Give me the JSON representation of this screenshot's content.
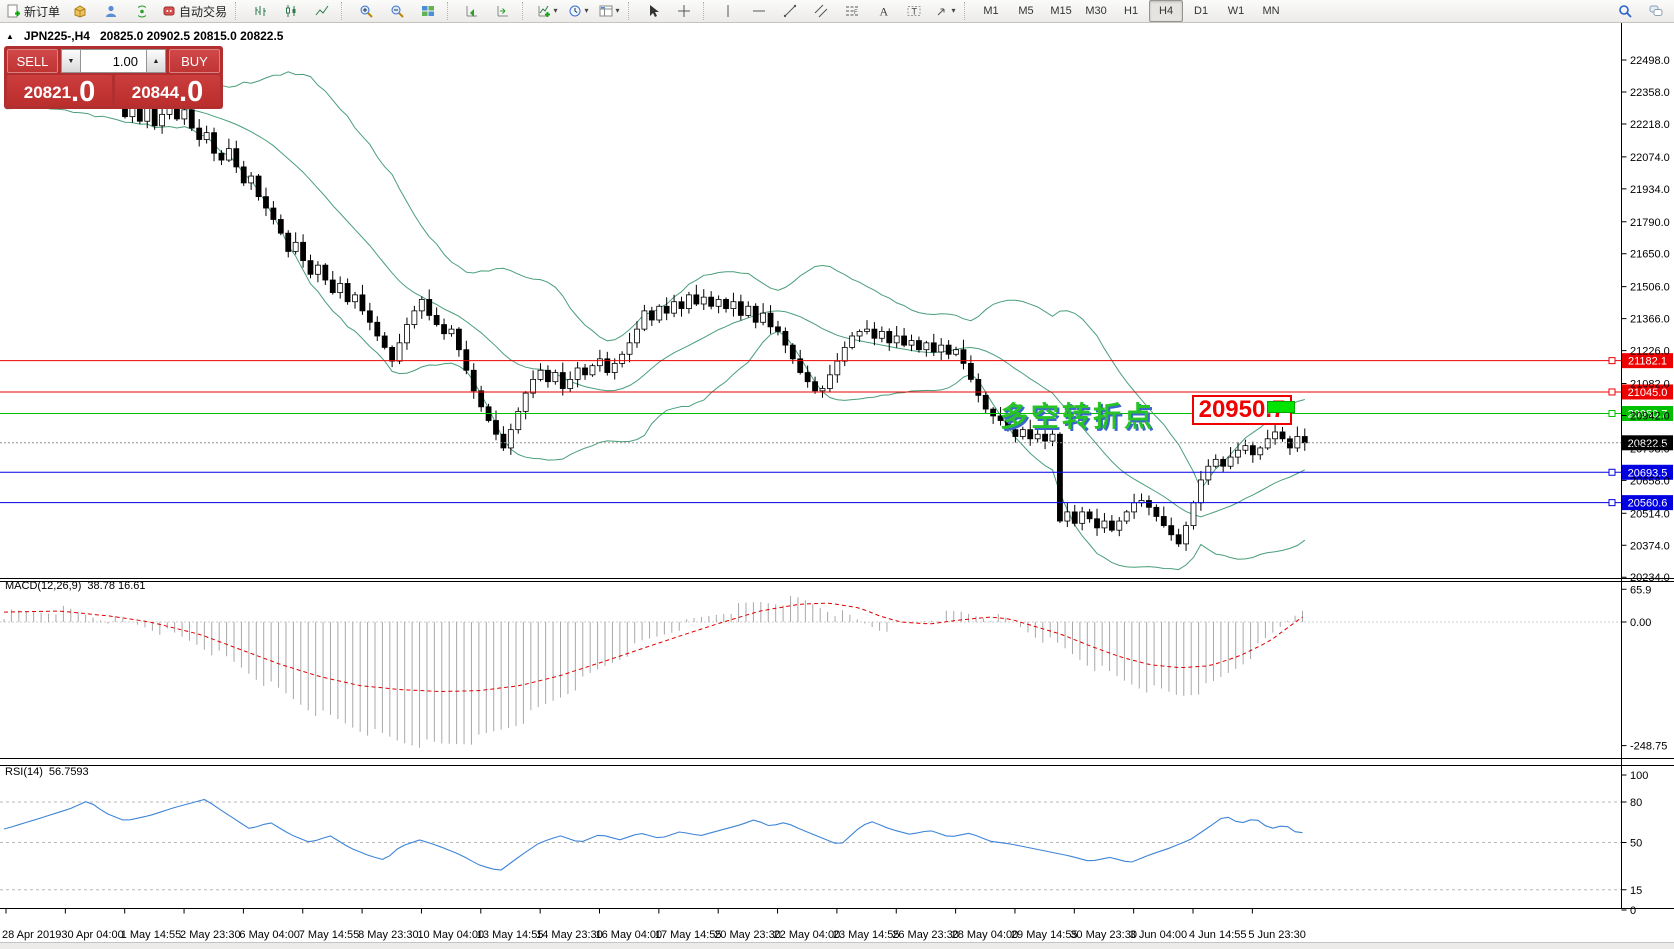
{
  "toolbar": {
    "items": [
      {
        "name": "new-order-button",
        "icon": "new-order-icon",
        "label": "新订单"
      },
      {
        "name": "package-button",
        "icon": "package-icon"
      },
      {
        "name": "support-button",
        "icon": "support-icon"
      },
      {
        "name": "signals-button",
        "icon": "signals-icon"
      },
      {
        "name": "autotrade-button",
        "icon": "autotrade-icon",
        "label": "自动交易"
      },
      {
        "sep": true
      },
      {
        "name": "bar-chart-button",
        "icon": "bar-chart-icon"
      },
      {
        "name": "candlestick-chart-button",
        "icon": "candlestick-icon"
      },
      {
        "name": "line-chart-button",
        "icon": "line-chart-icon"
      },
      {
        "sep": true
      },
      {
        "name": "zoom-in-button",
        "icon": "zoom-in-icon"
      },
      {
        "name": "zoom-out-button",
        "icon": "zoom-out-icon"
      },
      {
        "name": "tile-windows-button",
        "icon": "tile-windows-icon"
      },
      {
        "sep": true
      },
      {
        "name": "chart-shift-button",
        "icon": "chart-shift-icon"
      },
      {
        "name": "auto-scroll-button",
        "icon": "auto-scroll-icon"
      },
      {
        "sep": true
      },
      {
        "name": "indicators-button",
        "icon": "indicators-icon",
        "caret": true
      },
      {
        "name": "periods-button",
        "icon": "clock-icon",
        "caret": true
      },
      {
        "name": "templates-button",
        "icon": "templates-icon",
        "caret": true
      },
      {
        "sep": true
      },
      {
        "name": "cursor-button",
        "icon": "cursor-icon"
      },
      {
        "name": "crosshair-button",
        "icon": "crosshair-icon"
      },
      {
        "sep": true
      },
      {
        "name": "vline-button",
        "icon": "vline-icon"
      },
      {
        "name": "hline-button",
        "icon": "hline-icon"
      },
      {
        "name": "trendline-button",
        "icon": "trendline-icon"
      },
      {
        "name": "channel-button",
        "icon": "channel-icon"
      },
      {
        "name": "fibonacci-button",
        "icon": "fibonacci-icon"
      },
      {
        "name": "text-button",
        "icon": "text-a-icon"
      },
      {
        "name": "text-label-button",
        "icon": "text-label-icon"
      },
      {
        "name": "arrows-button",
        "icon": "arrow-icon",
        "caret": true
      },
      {
        "sep": true
      }
    ],
    "timeframes": [
      "M1",
      "M5",
      "M15",
      "M30",
      "H1",
      "H4",
      "D1",
      "W1",
      "MN"
    ],
    "active_timeframe": "H4",
    "right_items": [
      {
        "name": "search-button",
        "icon": "search-icon"
      },
      {
        "name": "chat-button",
        "icon": "chat-icon"
      }
    ]
  },
  "chart_header": {
    "collapse_icon": "▲",
    "symbol_period": "JPN225-,H4",
    "ohlc": "20825.0 20902.5 20815.0 20822.5"
  },
  "trade_panel": {
    "sell_label": "SELL",
    "buy_label": "BUY",
    "volume": "1.00",
    "sell_price_main": "20821",
    "sell_price_fraction": ".0",
    "buy_price_main": "20844",
    "buy_price_fraction": ".0"
  },
  "annotations": {
    "turning_point_text": "多空转折点",
    "price_callout": "20950.7"
  },
  "chart_data": {
    "type": "candlestick",
    "symbol": "JPN225-",
    "timeframe": "H4",
    "price_axis": {
      "min": 20234.0,
      "max": 22498.0,
      "ticks": [
        "22498.0",
        "22358.0",
        "22218.0",
        "22074.0",
        "21934.0",
        "21790.0",
        "21650.0",
        "21506.0",
        "21366.0",
        "21226.0",
        "21082.0",
        "20942.0",
        "20798.0",
        "20658.0",
        "20514.0",
        "20374.0",
        "20234.0"
      ]
    },
    "time_axis": {
      "labels": [
        "28 Apr 2019",
        "30 Apr 04:00",
        "1 May 14:55",
        "2 May 23:30",
        "6 May 04:00",
        "7 May 14:55",
        "8 May 23:30",
        "10 May 04:00",
        "13 May 14:55",
        "14 May 23:30",
        "16 May 04:00",
        "17 May 14:55",
        "20 May 23:30",
        "22 May 04:00",
        "23 May 14:55",
        "26 May 23:30",
        "28 May 04:00",
        "29 May 14:55",
        "30 May 23:30",
        "3 Jun 04:00",
        "4 Jun 14:55",
        "5 Jun 23:30"
      ]
    },
    "horizontal_lines": [
      {
        "price": 21182.1,
        "label": "21182.1",
        "color": "#ee0000"
      },
      {
        "price": 21045.0,
        "label": "21045.0",
        "color": "#ee0000"
      },
      {
        "price": 20950.7,
        "label": "20950.7",
        "color": "#00c000"
      },
      {
        "price": 20693.5,
        "label": "20693.5",
        "color": "#0000e0"
      },
      {
        "price": 20560.6,
        "label": "20560.6",
        "color": "#0000e0"
      }
    ],
    "current_price": {
      "price": 20822.5,
      "label": "20822.5",
      "color": "#000000"
    },
    "candles": {
      "pre_closes": [
        22480,
        22520,
        22450,
        22500,
        22430,
        22470,
        22400,
        22440,
        22380,
        22420,
        22350,
        22400,
        22330,
        22370,
        22300,
        22350,
        22280,
        22420,
        22380,
        22440,
        22400,
        22360,
        22410,
        22370,
        22330,
        22390,
        22350,
        22310,
        22360,
        22320,
        22280,
        22340,
        22300,
        22260,
        22320,
        22280,
        22240
      ],
      "closes": [
        22250,
        22310,
        22230,
        22290,
        22210,
        22260,
        22320,
        22240,
        22280,
        22200,
        22150,
        22180,
        22090,
        22060,
        22110,
        22030,
        21960,
        21990,
        21900,
        21850,
        21800,
        21740,
        21660,
        21700,
        21620,
        21560,
        21600,
        21535,
        21480,
        21520,
        21440,
        21470,
        21400,
        21350,
        21290,
        21240,
        21180,
        21260,
        21340,
        21400,
        21450,
        21380,
        21340,
        21300,
        21320,
        21230,
        21140,
        21050,
        20980,
        20920,
        20860,
        20800,
        20880,
        20960,
        21040,
        21100,
        21140,
        21090,
        21130,
        21060,
        21100,
        21150,
        21120,
        21160,
        21190,
        21130,
        21170,
        21210,
        21260,
        21320,
        21400,
        21360,
        21420,
        21390,
        21440,
        21410,
        21470,
        21430,
        21460,
        21420,
        21450,
        21410,
        21440,
        21380,
        21420,
        21350,
        21390,
        21330,
        21310,
        21250,
        21190,
        21130,
        21090,
        21050,
        21060,
        21120,
        21180,
        21240,
        21290,
        21310,
        21320,
        21280,
        21310,
        21260,
        21290,
        21250,
        21270,
        21230,
        21260,
        21220,
        21250,
        21210,
        21230,
        21170,
        21100,
        21030,
        20970,
        20940,
        20920,
        20880,
        20850,
        20880,
        20840,
        20860,
        20830,
        20860,
        20480,
        20520,
        20470,
        20520,
        20490,
        20450,
        20480,
        20440,
        20480,
        20520,
        20560,
        20570,
        20540,
        20500,
        20460,
        20420,
        20380,
        20460,
        20560,
        20660,
        20720,
        20750,
        20720,
        20760,
        20790,
        20810,
        20770,
        20800,
        20840,
        20870,
        20840,
        20800,
        20850,
        20822.5
      ]
    },
    "bollinger": {
      "period": 20,
      "deviation": 2,
      "color": "#4a9e7a"
    },
    "macd": {
      "label": "MACD(12,26,9)",
      "values": "38.78 16.61",
      "axis_ticks": [
        "65.9",
        "0.00",
        "-248.75"
      ],
      "histogram_color": "#a8a8a8",
      "signal_color": "#e00000",
      "histogram": [
        [
          4,
          15
        ],
        [
          60,
          25
        ],
        [
          110,
          5
        ],
        [
          150,
          -10
        ],
        [
          200,
          -45
        ],
        [
          240,
          -90
        ],
        [
          280,
          -140
        ],
        [
          320,
          -185
        ],
        [
          360,
          -215
        ],
        [
          400,
          -240
        ],
        [
          440,
          -248
        ],
        [
          480,
          -235
        ],
        [
          520,
          -200
        ],
        [
          560,
          -150
        ],
        [
          600,
          -95
        ],
        [
          640,
          -45
        ],
        [
          680,
          -8
        ],
        [
          720,
          20
        ],
        [
          760,
          40
        ],
        [
          800,
          44
        ],
        [
          830,
          25
        ],
        [
          860,
          0
        ],
        [
          880,
          -12
        ],
        [
          900,
          -8
        ],
        [
          930,
          8
        ],
        [
          960,
          18
        ],
        [
          990,
          12
        ],
        [
          1010,
          0
        ],
        [
          1030,
          -20
        ],
        [
          1060,
          -50
        ],
        [
          1090,
          -85
        ],
        [
          1120,
          -115
        ],
        [
          1150,
          -135
        ],
        [
          1180,
          -148
        ],
        [
          1210,
          -130
        ],
        [
          1240,
          -85
        ],
        [
          1270,
          -30
        ],
        [
          1290,
          10
        ],
        [
          1307,
          39
        ]
      ],
      "signal": [
        [
          4,
          20
        ],
        [
          60,
          22
        ],
        [
          110,
          12
        ],
        [
          150,
          0
        ],
        [
          200,
          -25
        ],
        [
          240,
          -55
        ],
        [
          280,
          -85
        ],
        [
          320,
          -110
        ],
        [
          360,
          -128
        ],
        [
          400,
          -136
        ],
        [
          440,
          -140
        ],
        [
          480,
          -138
        ],
        [
          520,
          -128
        ],
        [
          560,
          -108
        ],
        [
          600,
          -82
        ],
        [
          640,
          -55
        ],
        [
          680,
          -28
        ],
        [
          720,
          -2
        ],
        [
          760,
          22
        ],
        [
          800,
          36
        ],
        [
          830,
          38
        ],
        [
          860,
          28
        ],
        [
          880,
          12
        ],
        [
          900,
          0
        ],
        [
          930,
          -4
        ],
        [
          960,
          4
        ],
        [
          990,
          10
        ],
        [
          1010,
          6
        ],
        [
          1030,
          -6
        ],
        [
          1060,
          -24
        ],
        [
          1090,
          -48
        ],
        [
          1120,
          -70
        ],
        [
          1150,
          -86
        ],
        [
          1180,
          -92
        ],
        [
          1210,
          -88
        ],
        [
          1240,
          -68
        ],
        [
          1270,
          -38
        ],
        [
          1290,
          -8
        ],
        [
          1307,
          16.61
        ]
      ]
    },
    "rsi": {
      "label": "RSI(14)",
      "value": "56.7593",
      "axis_ticks": [
        "100",
        "80",
        "50",
        "15",
        "0"
      ],
      "levels": [
        80,
        50,
        15
      ],
      "color": "#3f85d6",
      "line": [
        [
          5,
          60
        ],
        [
          40,
          68
        ],
        [
          70,
          75
        ],
        [
          88,
          81
        ],
        [
          105,
          72
        ],
        [
          125,
          66
        ],
        [
          150,
          70
        ],
        [
          175,
          76
        ],
        [
          205,
          82
        ],
        [
          225,
          72
        ],
        [
          250,
          60
        ],
        [
          270,
          65
        ],
        [
          290,
          56
        ],
        [
          310,
          50
        ],
        [
          330,
          55
        ],
        [
          350,
          46
        ],
        [
          370,
          40
        ],
        [
          385,
          37
        ],
        [
          400,
          47
        ],
        [
          420,
          52
        ],
        [
          440,
          47
        ],
        [
          460,
          41
        ],
        [
          480,
          33
        ],
        [
          500,
          29
        ],
        [
          520,
          40
        ],
        [
          540,
          50
        ],
        [
          560,
          55
        ],
        [
          580,
          50
        ],
        [
          600,
          56
        ],
        [
          620,
          52
        ],
        [
          640,
          57
        ],
        [
          660,
          53
        ],
        [
          680,
          58
        ],
        [
          700,
          55
        ],
        [
          720,
          59
        ],
        [
          740,
          63
        ],
        [
          755,
          67
        ],
        [
          770,
          62
        ],
        [
          785,
          65
        ],
        [
          800,
          60
        ],
        [
          820,
          54
        ],
        [
          840,
          48
        ],
        [
          858,
          60
        ],
        [
          870,
          66
        ],
        [
          890,
          60
        ],
        [
          910,
          56
        ],
        [
          930,
          59
        ],
        [
          950,
          54
        ],
        [
          970,
          57
        ],
        [
          990,
          51
        ],
        [
          1010,
          49
        ],
        [
          1030,
          46
        ],
        [
          1050,
          43
        ],
        [
          1070,
          40
        ],
        [
          1090,
          36
        ],
        [
          1110,
          39
        ],
        [
          1130,
          35
        ],
        [
          1150,
          41
        ],
        [
          1170,
          46
        ],
        [
          1190,
          52
        ],
        [
          1210,
          62
        ],
        [
          1225,
          70
        ],
        [
          1240,
          64
        ],
        [
          1255,
          68
        ],
        [
          1270,
          60
        ],
        [
          1285,
          63
        ],
        [
          1295,
          58
        ],
        [
          1307,
          56.76
        ]
      ]
    },
    "highlight_zone": {
      "color": "#00e400"
    },
    "colors": {
      "background": "#ffffff",
      "candle_up": "#ffffff",
      "candle_down": "#000000",
      "outline": "#000000"
    }
  }
}
